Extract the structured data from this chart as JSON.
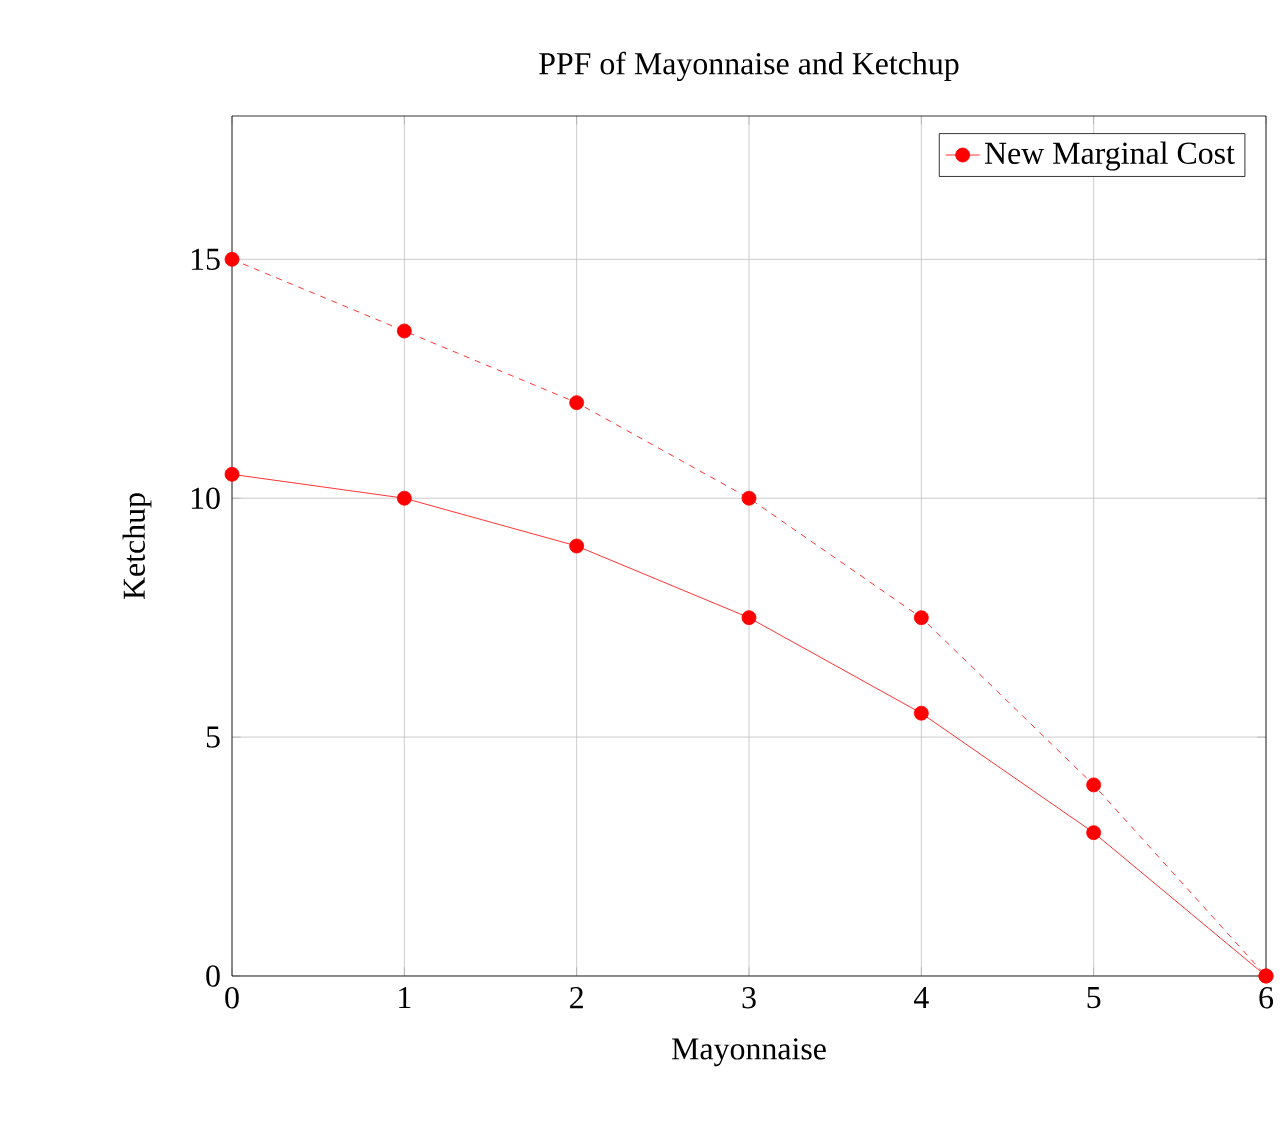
{
  "chart_data": {
    "type": "line",
    "title": "PPF of Mayonnaise and Ketchup",
    "xlabel": "Mayonnaise",
    "ylabel": "Ketchup",
    "x": [
      0,
      1,
      2,
      3,
      4,
      5,
      6
    ],
    "series": [
      {
        "name": "New Marginal Cost",
        "color": "#ff0000",
        "line_style": "solid",
        "values": [
          10.5,
          10,
          9,
          7.5,
          5.5,
          3,
          0
        ]
      },
      {
        "color": "#ff0000",
        "line_style": "dashed",
        "values": [
          15,
          13.5,
          12,
          10,
          7.5,
          4,
          0
        ]
      }
    ],
    "xlim": [
      0,
      6
    ],
    "ylim": [
      0,
      18
    ],
    "xticks": [
      0,
      1,
      2,
      3,
      4,
      5,
      6
    ],
    "yticks": [
      0,
      5,
      10,
      15
    ],
    "grid": true,
    "legend": "top right",
    "marker": "circle"
  }
}
